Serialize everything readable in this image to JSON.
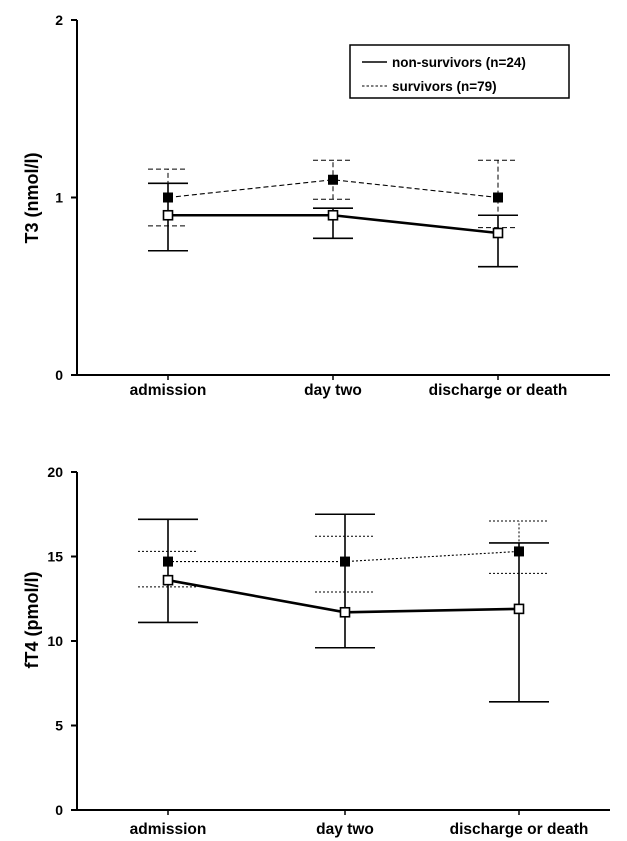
{
  "legend_labels": {
    "non_survivors": "non-survivors (n=24)",
    "survivors": "survivors (n=79)"
  },
  "chart_data": [
    {
      "type": "line",
      "ylabel": "T3 (nmol/l)",
      "xlabel": "",
      "categories": [
        "admission",
        "day two",
        "discharge or death"
      ],
      "ylim": [
        0,
        2
      ],
      "yticks": [
        "0",
        "1",
        "2"
      ],
      "legend": "top-right",
      "grid": false,
      "series": [
        {
          "name": "non-survivors (n=24)",
          "style": "solid",
          "marker": "open-square",
          "values": [
            0.9,
            0.9,
            0.8
          ],
          "err_low": [
            0.7,
            0.77,
            0.61
          ],
          "err_high": [
            1.08,
            0.94,
            0.9
          ]
        },
        {
          "name": "survivors (n=79)",
          "style": "dashed",
          "marker": "filled-square",
          "values": [
            1.0,
            1.1,
            1.0
          ],
          "err_low": [
            0.84,
            0.99,
            0.83
          ],
          "err_high": [
            1.16,
            1.21,
            1.21
          ]
        }
      ]
    },
    {
      "type": "line",
      "ylabel": "fT4 (pmol/l)",
      "xlabel": "",
      "categories": [
        "admission",
        "day two",
        "discharge or death"
      ],
      "ylim": [
        0,
        20
      ],
      "yticks": [
        "0",
        "5",
        "10",
        "15",
        "20"
      ],
      "grid": false,
      "series": [
        {
          "name": "non-survivors (n=24)",
          "style": "solid",
          "marker": "open-square",
          "values": [
            13.6,
            11.7,
            11.9
          ],
          "err_low": [
            11.1,
            9.6,
            6.4
          ],
          "err_high": [
            17.2,
            17.5,
            15.8
          ]
        },
        {
          "name": "survivors (n=79)",
          "style": "dotted",
          "marker": "filled-square",
          "values": [
            14.7,
            14.7,
            15.3
          ],
          "err_low": [
            13.2,
            12.9,
            14.0
          ],
          "err_high": [
            15.3,
            16.2,
            17.1
          ]
        }
      ]
    }
  ]
}
